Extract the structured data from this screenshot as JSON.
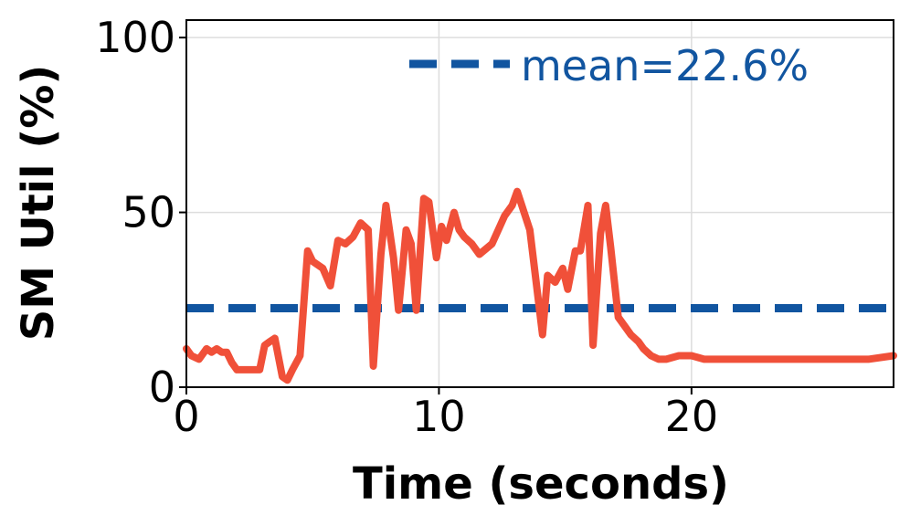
{
  "chart_data": {
    "type": "line",
    "xlabel": "Time (seconds)",
    "ylabel": "SM Util (%)",
    "xlim": [
      0,
      28
    ],
    "ylim": [
      0,
      105
    ],
    "xticks": [
      0,
      10,
      20
    ],
    "xtick_labels": [
      "0",
      "10",
      "20"
    ],
    "yticks": [
      0,
      50,
      100
    ],
    "ytick_labels": [
      "0",
      "50",
      "100"
    ],
    "grid": true,
    "legend": {
      "location": "top-right",
      "label": "mean=22.6%"
    },
    "series": [
      {
        "name": "SM Util",
        "color": "#f05039",
        "x": [
          0,
          0.2,
          0.5,
          0.8,
          1.0,
          1.2,
          1.4,
          1.6,
          1.8,
          2.0,
          2.3,
          2.6,
          2.9,
          3.1,
          3.3,
          3.5,
          3.8,
          4.0,
          4.2,
          4.5,
          4.8,
          5.0,
          5.4,
          5.7,
          6.0,
          6.3,
          6.6,
          6.9,
          7.2,
          7.4,
          7.7,
          7.9,
          8.2,
          8.4,
          8.7,
          8.9,
          9.1,
          9.4,
          9.6,
          9.9,
          10.1,
          10.3,
          10.6,
          10.8,
          11.0,
          11.3,
          11.6,
          12.1,
          12.6,
          12.9,
          13.1,
          13.6,
          14.1,
          14.3,
          14.6,
          14.9,
          15.1,
          15.4,
          15.6,
          15.9,
          16.1,
          16.4,
          16.6,
          16.8,
          17.1,
          17.4,
          17.6,
          17.9,
          18.1,
          18.4,
          18.7,
          19.0,
          19.5,
          20.0,
          20.5,
          21.0,
          21.5,
          22.0,
          23.0,
          24.0,
          25.0,
          26.0,
          27.0,
          28.0
        ],
        "y": [
          11,
          9,
          8,
          11,
          10,
          11,
          10,
          10,
          7,
          5,
          5,
          5,
          5,
          12,
          13,
          14,
          3,
          2,
          5,
          9,
          39,
          36,
          34,
          29,
          42,
          41,
          43,
          47,
          45,
          6,
          38,
          52,
          37,
          22,
          45,
          41,
          22,
          54,
          53,
          37,
          46,
          42,
          50,
          45,
          43,
          41,
          38,
          41,
          49,
          52,
          56,
          45,
          15,
          32,
          30,
          34,
          28,
          39,
          39,
          52,
          12,
          44,
          52,
          40,
          20,
          17,
          15,
          13,
          11,
          9,
          8,
          8,
          9,
          9,
          8,
          8,
          8,
          8,
          8,
          8,
          8,
          8,
          8,
          9
        ]
      },
      {
        "name": "mean",
        "color": "#1155a0",
        "y_constant": 22.6
      }
    ]
  }
}
